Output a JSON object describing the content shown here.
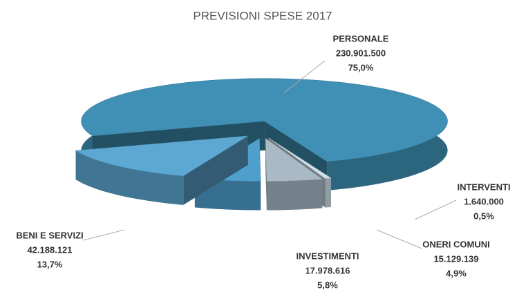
{
  "chart_data": {
    "type": "pie",
    "title": "PREVISIONI SPESE 2017",
    "categories": [
      "PERSONALE",
      "INTERVENTI",
      "ONERI COMUNI",
      "INVESTIMENTI",
      "BENI E SERVIZI"
    ],
    "values": [
      230901500,
      1640000,
      15129139,
      17978616,
      42188121
    ],
    "value_labels": [
      "230.901.500",
      "1.640.000",
      "15.129.139",
      "17.978.616",
      "42.188.121"
    ],
    "percentages": [
      75.0,
      0.5,
      4.9,
      5.8,
      13.7
    ],
    "percentage_labels": [
      "75,0%",
      "0,5%",
      "4,9%",
      "5,8%",
      "13,7%"
    ],
    "colors": [
      "#3f90b4",
      "#cfe0ea",
      "#a9bac6",
      "#4f9fcd",
      "#5ca8d2"
    ]
  }
}
